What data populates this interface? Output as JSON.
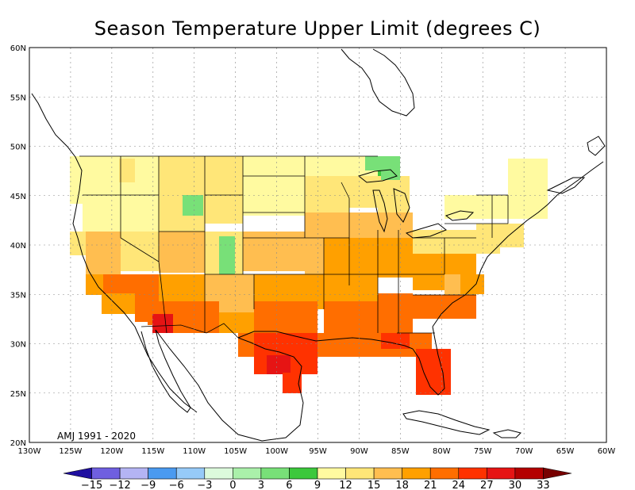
{
  "title": "Season Temperature Upper Limit (degrees C)",
  "period_label": "AMJ 1991 - 2020",
  "axes": {
    "x_ticks": [
      "130W",
      "125W",
      "120W",
      "115W",
      "110W",
      "105W",
      "100W",
      "95W",
      "90W",
      "85W",
      "80W",
      "75W",
      "70W",
      "65W",
      "60W"
    ],
    "y_ticks": [
      "60N",
      "55N",
      "50N",
      "45N",
      "40N",
      "35N",
      "30N",
      "25N",
      "20N"
    ]
  },
  "colorbar": {
    "labels": [
      "-15",
      "-12",
      "-9",
      "-6",
      "-3",
      "0",
      "3",
      "6",
      "9",
      "12",
      "15",
      "18",
      "21",
      "24",
      "27",
      "30",
      "33"
    ],
    "colors": [
      "#1f0fa0",
      "#6f5fe0",
      "#b4b4f4",
      "#4a9af0",
      "#96caf8",
      "#dcfadc",
      "#aaf0aa",
      "#78e078",
      "#3cc83c",
      "#fffaa0",
      "#ffe678",
      "#ffbe50",
      "#ffa000",
      "#ff6e00",
      "#ff3200",
      "#e61414",
      "#b40000",
      "#780000"
    ]
  },
  "grid": true
}
